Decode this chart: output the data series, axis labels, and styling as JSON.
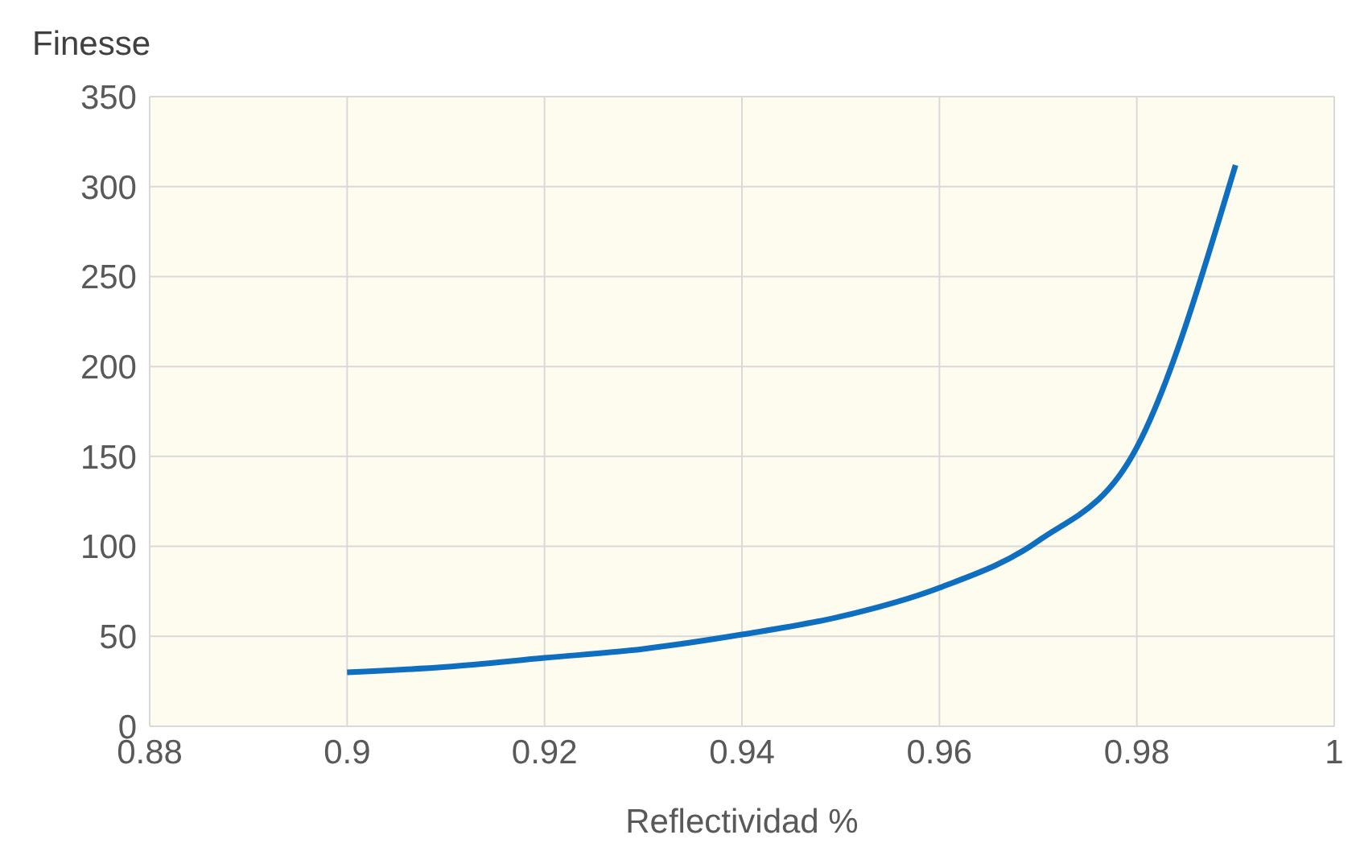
{
  "chart_data": {
    "type": "line",
    "xlabel": "Reflectividad %",
    "ylabel": "Finesse",
    "x": [
      0.9,
      0.91,
      0.92,
      0.93,
      0.94,
      0.95,
      0.96,
      0.97,
      0.98,
      0.99
    ],
    "series": [
      {
        "color": "#0e6ebf",
        "values": [
          30,
          33,
          38,
          43,
          51,
          61,
          77,
          103,
          155,
          312
        ]
      }
    ],
    "xlim": [
      0.88,
      1
    ],
    "xticks": [
      0.88,
      0.9,
      0.92,
      0.94,
      0.96,
      0.98,
      1
    ],
    "ylim": [
      0,
      350
    ],
    "yticks": [
      0,
      50,
      100,
      150,
      200,
      250,
      300,
      350
    ],
    "grid": true,
    "marker": "none",
    "line_style": "solid",
    "legend": false
  }
}
